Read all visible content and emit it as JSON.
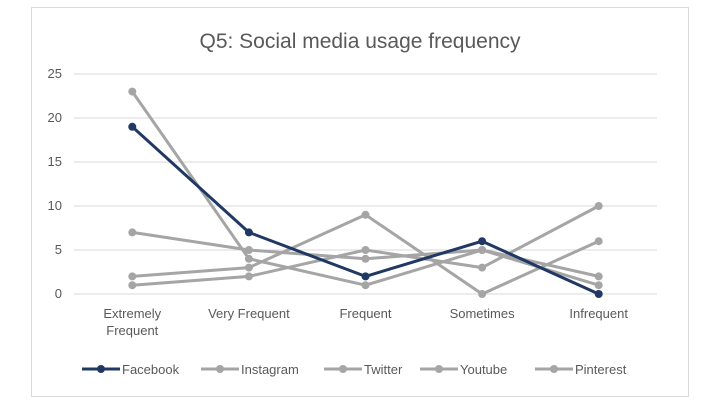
{
  "chart_data": {
    "type": "line",
    "title": "Q5: Social media usage frequency",
    "xlabel": "",
    "ylabel": "",
    "ylim": [
      0,
      25
    ],
    "yticks": [
      0,
      5,
      10,
      15,
      20,
      25
    ],
    "grid": true,
    "legend_position": "bottom",
    "categories": [
      [
        "Extremely",
        "Frequent"
      ],
      [
        "Very Frequent"
      ],
      [
        "Frequent"
      ],
      [
        "Sometimes"
      ],
      [
        "Infrequent"
      ]
    ],
    "series": [
      {
        "name": "Facebook",
        "values": [
          19,
          7,
          2,
          6,
          0
        ],
        "color": "#203864"
      },
      {
        "name": "Instagram",
        "values": [
          23,
          4,
          1,
          5,
          1
        ],
        "color": "#a5a5a5"
      },
      {
        "name": "Twitter",
        "values": [
          7,
          5,
          4,
          5,
          2
        ],
        "color": "#a5a5a5"
      },
      {
        "name": "Youtube",
        "values": [
          2,
          3,
          9,
          0,
          6
        ],
        "color": "#a5a5a5"
      },
      {
        "name": "Pinterest",
        "values": [
          1,
          2,
          5,
          3,
          10
        ],
        "color": "#a5a5a5"
      }
    ]
  }
}
